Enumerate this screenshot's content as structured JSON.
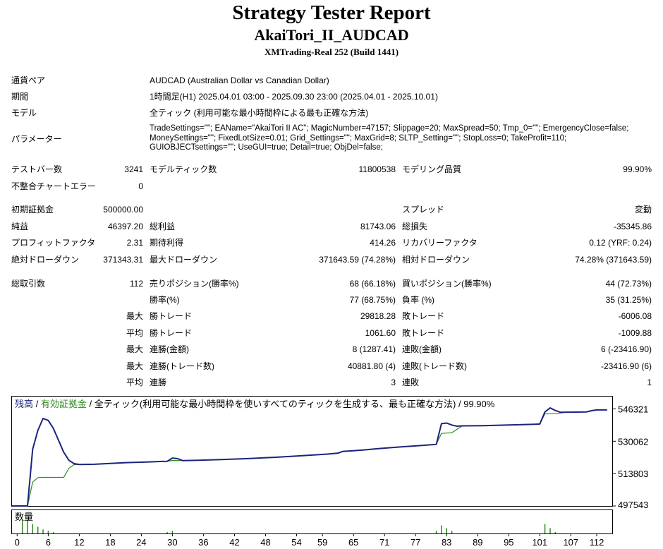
{
  "header": {
    "title": "Strategy Tester Report",
    "subtitle": "AkaiTori_II_AUDCAD",
    "server": "XMTrading-Real 252 (Build 1441)"
  },
  "info": {
    "symbol_label": "通貨ペア",
    "symbol_value": "AUDCAD (Australian Dollar vs Canadian Dollar)",
    "period_label": "期間",
    "period_value": "1時間足(H1) 2025.04.01 03:00 - 2025.09.30 23:00 (2025.04.01 - 2025.10.01)",
    "model_label": "モデル",
    "model_value": "全ティック (利用可能な最小時間枠による最も正確な方法)",
    "params_label": "パラメーター",
    "params_lines": [
      "TradeSettings=\"\"; EAName=\"AkaiTori II AC\"; MagicNumber=47157; Slippage=20; MaxSpread=50; Tmp_0=\"\"; EmergencyClose=false;",
      "MoneySettings=\"\"; FixedLotSize=0.01; Grid_Settings=\"\"; MaxGrid=8; SLTP_Setting=\"\"; StopLoss=0; TakeProfit=110;",
      "GUIOBJECTsettings=\"\"; UseGUI=true; Detail=true; ObjDel=false;"
    ]
  },
  "stats": {
    "bars_label": "テストバー数",
    "bars_value": "3241",
    "ticks_label": "モデルティック数",
    "ticks_value": "11800538",
    "quality_label": "モデリング品質",
    "quality_value": "99.90%",
    "mismatch_label": "不整合チャートエラー",
    "mismatch_value": "0",
    "deposit_label": "初期証拠金",
    "deposit_value": "500000.00",
    "spread_label": "スプレッド",
    "spread_value": "変動",
    "net_label": "純益",
    "net_value": "46397.20",
    "gross_profit_label": "総利益",
    "gross_profit_value": "81743.06",
    "gross_loss_label": "総損失",
    "gross_loss_value": "-35345.86",
    "pf_label": "プロフィットファクタ",
    "pf_value": "2.31",
    "expected_label": "期待利得",
    "expected_value": "414.26",
    "recovery_label": "リカバリーファクタ",
    "recovery_value": "0.12 (YRF: 0.24)",
    "abs_dd_label": "絶対ドローダウン",
    "abs_dd_value": "371343.31",
    "max_dd_label": "最大ドローダウン",
    "max_dd_value": "371643.59 (74.28%)",
    "rel_dd_label": "相対ドローダウン",
    "rel_dd_value": "74.28% (371643.59)",
    "trades_label": "総取引数",
    "trades_value": "112",
    "short_label": "売りポジション(勝率%)",
    "short_value": "68 (66.18%)",
    "long_label": "買いポジション(勝率%)",
    "long_value": "44 (72.73%)",
    "win_rate_label": "勝率(%)",
    "win_rate_value": "77 (68.75%)",
    "loss_rate_label": "負率 (%)",
    "loss_rate_value": "35 (31.25%)",
    "max_label": "最大",
    "avg_label": "平均",
    "largest_win_label": "勝トレード",
    "largest_win_value": "29818.28",
    "largest_loss_label": "敗トレード",
    "largest_loss_value": "-6006.08",
    "avg_win_label": "勝トレード",
    "avg_win_value": "1061.60",
    "avg_loss_label": "敗トレード",
    "avg_loss_value": "-1009.88",
    "cons_win_amt_label": "連勝(金額)",
    "cons_win_amt_value": "8 (1287.41)",
    "cons_loss_amt_label": "連敗(金額)",
    "cons_loss_amt_value": "6 (-23416.90)",
    "cons_win_cnt_label": "連勝(トレード数)",
    "cons_win_cnt_value": "40881.80 (4)",
    "cons_loss_cnt_label": "連敗(トレード数)",
    "cons_loss_cnt_value": "-23416.90 (6)",
    "avg_cons_win_label": "連勝",
    "avg_cons_win_value": "3",
    "avg_cons_loss_label": "連敗",
    "avg_cons_loss_value": "1"
  },
  "chart_data": {
    "type": "line",
    "legend": {
      "balance": "残高",
      "sep1": " / ",
      "equity": "有効証拠金",
      "rest": " / 全ティック(利用可能な最小時間枠を使いすべてのティックを生成する、最も正確な方法) / 99.90%"
    },
    "colors": {
      "balance": "#1a237e",
      "equity": "#2e8b1f",
      "volume": "#2e8b1f",
      "background": "#ffffff",
      "axis": "#000000"
    },
    "ylim": [
      497543,
      552500
    ],
    "yticks": [
      546321,
      530062,
      513803,
      497543
    ],
    "xlim": [
      -1,
      115
    ],
    "xticks": [
      0,
      6,
      12,
      18,
      24,
      30,
      36,
      42,
      48,
      54,
      59,
      65,
      71,
      77,
      83,
      89,
      95,
      101,
      107,
      112
    ],
    "volume_label": "数量",
    "balance_series": [
      [
        -1,
        497543
      ],
      [
        2,
        497543
      ],
      [
        3,
        526000
      ],
      [
        4,
        535500
      ],
      [
        5,
        541500
      ],
      [
        6,
        540500
      ],
      [
        7,
        536500
      ],
      [
        8,
        530500
      ],
      [
        9,
        524500
      ],
      [
        10,
        520500
      ],
      [
        11,
        518800
      ],
      [
        12,
        518400
      ],
      [
        15,
        518500
      ],
      [
        18,
        518900
      ],
      [
        21,
        519300
      ],
      [
        25,
        519600
      ],
      [
        28,
        519900
      ],
      [
        29,
        520000
      ],
      [
        30,
        521600
      ],
      [
        31,
        521300
      ],
      [
        32,
        520300
      ],
      [
        35,
        520500
      ],
      [
        40,
        520900
      ],
      [
        45,
        521400
      ],
      [
        50,
        522000
      ],
      [
        54,
        522600
      ],
      [
        57,
        523100
      ],
      [
        60,
        523600
      ],
      [
        62,
        524100
      ],
      [
        63,
        525000
      ],
      [
        65,
        525300
      ],
      [
        67,
        525700
      ],
      [
        70,
        526400
      ],
      [
        74,
        527200
      ],
      [
        78,
        527900
      ],
      [
        80,
        528300
      ],
      [
        81,
        528500
      ],
      [
        82,
        538900
      ],
      [
        83,
        539200
      ],
      [
        84,
        538200
      ],
      [
        85,
        537600
      ],
      [
        86,
        537800
      ],
      [
        90,
        537900
      ],
      [
        95,
        538200
      ],
      [
        100,
        538600
      ],
      [
        101,
        538700
      ],
      [
        102,
        544800
      ],
      [
        103,
        546800
      ],
      [
        104,
        545500
      ],
      [
        105,
        544600
      ],
      [
        108,
        544700
      ],
      [
        110,
        544800
      ],
      [
        111,
        545400
      ],
      [
        112,
        545800
      ],
      [
        114,
        545800
      ]
    ],
    "equity_series": [
      [
        -1,
        497543
      ],
      [
        2,
        497543
      ],
      [
        3,
        509500
      ],
      [
        4,
        511800
      ],
      [
        5,
        511900
      ],
      [
        9,
        511900
      ],
      [
        10,
        516500
      ],
      [
        11,
        518300
      ],
      [
        12,
        518400
      ],
      [
        15,
        518500
      ],
      [
        18,
        518900
      ],
      [
        21,
        519300
      ],
      [
        25,
        519600
      ],
      [
        28,
        519900
      ],
      [
        29,
        520000
      ],
      [
        30,
        520400
      ],
      [
        32,
        520300
      ],
      [
        35,
        520500
      ],
      [
        40,
        520900
      ],
      [
        45,
        521400
      ],
      [
        50,
        522000
      ],
      [
        54,
        522600
      ],
      [
        57,
        523100
      ],
      [
        60,
        523600
      ],
      [
        62,
        524100
      ],
      [
        63,
        525000
      ],
      [
        65,
        525300
      ],
      [
        67,
        525700
      ],
      [
        70,
        526400
      ],
      [
        74,
        527200
      ],
      [
        78,
        527900
      ],
      [
        80,
        528300
      ],
      [
        81,
        528500
      ],
      [
        82,
        534000
      ],
      [
        84,
        534300
      ],
      [
        86,
        537800
      ],
      [
        90,
        537900
      ],
      [
        95,
        538200
      ],
      [
        100,
        538600
      ],
      [
        101,
        538700
      ],
      [
        102,
        543800
      ],
      [
        104,
        543900
      ],
      [
        106,
        544600
      ],
      [
        108,
        544700
      ],
      [
        110,
        544800
      ],
      [
        111,
        545400
      ],
      [
        112,
        545800
      ],
      [
        114,
        545800
      ]
    ],
    "volume_bars": [
      [
        1,
        10
      ],
      [
        2,
        10
      ],
      [
        3,
        7
      ],
      [
        4,
        5
      ],
      [
        5,
        3
      ],
      [
        6,
        2
      ],
      [
        7,
        1
      ],
      [
        29,
        1
      ],
      [
        30,
        2
      ],
      [
        81,
        2
      ],
      [
        82,
        6
      ],
      [
        83,
        4
      ],
      [
        84,
        2
      ],
      [
        102,
        7
      ],
      [
        103,
        4
      ],
      [
        104,
        1
      ]
    ],
    "volume_max": 10
  }
}
